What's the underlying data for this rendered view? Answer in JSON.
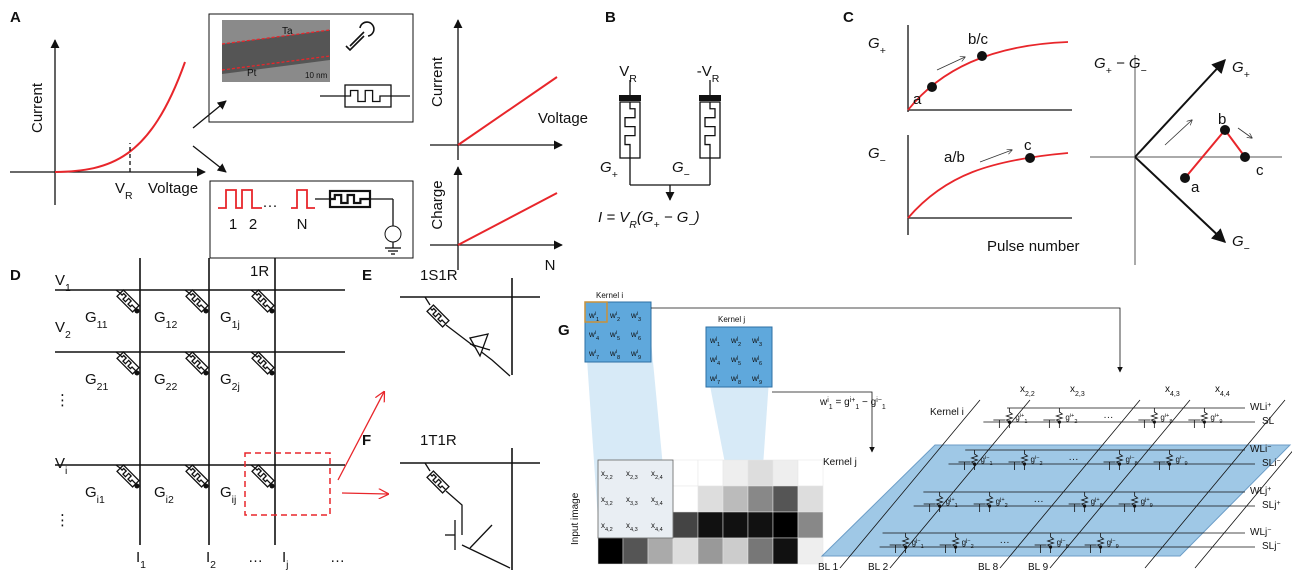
{
  "A": {
    "label": "A",
    "iv_ylabel": "Current",
    "vr": {
      "base": "V",
      "sub": "R"
    },
    "iv_xlabel": "Voltage",
    "tem_top": "Ta",
    "tem_bottom": "Pt",
    "tem_scale": "10 nm",
    "lin_ylabel": "Current",
    "lin_xlabel": "Voltage",
    "pulse_labels": [
      "1",
      "2",
      "···",
      "N"
    ],
    "charge_ylabel": "Charge",
    "charge_xlabel": "N"
  },
  "B": {
    "label": "B",
    "left_voltage": {
      "base": "V",
      "sub": "R"
    },
    "right_voltage": {
      "base": "-V",
      "sub": "R"
    },
    "g_plus": {
      "base": "G",
      "sub": "+"
    },
    "g_minus": {
      "base": "G",
      "sub": "−"
    },
    "equation": [
      {
        "base": "I = V"
      },
      {
        "sub": "R"
      },
      {
        "base": "(G"
      },
      {
        "sub": "+"
      },
      {
        "base": " − G"
      },
      {
        "sub": "−"
      },
      {
        "base": ")"
      }
    ]
  },
  "C": {
    "label": "C",
    "top_ylabel": {
      "base": "G",
      "sub": "+"
    },
    "top_points": [
      "a",
      "b/c"
    ],
    "bottom_ylabel": {
      "base": "G",
      "sub": "−"
    },
    "bottom_points": [
      "a/b",
      "c"
    ],
    "xlabel": "Pulse number",
    "vec_title": [
      {
        "base": "G"
      },
      {
        "sub": "+"
      },
      {
        "base": " − G"
      },
      {
        "sub": "−"
      }
    ],
    "vec_plus": {
      "base": "G",
      "sub": "+"
    },
    "vec_minus": {
      "base": "G",
      "sub": "−"
    },
    "vec_points": [
      "a",
      "b",
      "c"
    ]
  },
  "D": {
    "label": "D",
    "title": "1R",
    "rows": [
      {
        "base": "V",
        "sub": "1"
      },
      {
        "base": "V",
        "sub": "2"
      },
      "⋮",
      {
        "base": "V",
        "sub": "i"
      },
      "⋮"
    ],
    "conductances": [
      [
        {
          "base": "G",
          "sub": "11"
        },
        {
          "base": "G",
          "sub": "12"
        },
        {
          "base": "G",
          "sub": "1j"
        }
      ],
      [
        {
          "base": "G",
          "sub": "21"
        },
        {
          "base": "G",
          "sub": "22"
        },
        {
          "base": "G",
          "sub": "2j"
        }
      ],
      [
        {
          "base": "G",
          "sub": "i1"
        },
        {
          "base": "G",
          "sub": "i2"
        },
        {
          "base": "G",
          "sub": "ij"
        }
      ]
    ],
    "columns": [
      {
        "base": "I",
        "sub": "1"
      },
      {
        "base": "I",
        "sub": "2"
      },
      "…",
      {
        "base": "I",
        "sub": "j"
      },
      "…"
    ]
  },
  "E": {
    "label": "E",
    "title": "1S1R"
  },
  "F": {
    "label": "F",
    "title": "1T1R"
  },
  "G": {
    "label": "G",
    "kernel_i": {
      "title": "Kernel  i",
      "weights": [
        {
          "base": "w",
          "sup": "i",
          "sub": "1"
        },
        {
          "base": "w",
          "sup": "i",
          "sub": "2"
        },
        {
          "base": "w",
          "sup": "i",
          "sub": "3"
        },
        {
          "base": "w",
          "sup": "i",
          "sub": "4"
        },
        {
          "base": "w",
          "sup": "i",
          "sub": "5"
        },
        {
          "base": "w",
          "sup": "i",
          "sub": "6"
        },
        {
          "base": "w",
          "sup": "i",
          "sub": "7"
        },
        {
          "base": "w",
          "sup": "i",
          "sub": "8"
        },
        {
          "base": "w",
          "sup": "i",
          "sub": "9"
        }
      ]
    },
    "kernel_j": {
      "title": "Kernel  j",
      "weights": [
        {
          "base": "w",
          "sup": "j",
          "sub": "1"
        },
        {
          "base": "w",
          "sup": "j",
          "sub": "2"
        },
        {
          "base": "w",
          "sup": "j",
          "sub": "3"
        },
        {
          "base": "w",
          "sup": "j",
          "sub": "4"
        },
        {
          "base": "w",
          "sup": "j",
          "sub": "5"
        },
        {
          "base": "w",
          "sup": "j",
          "sub": "6"
        },
        {
          "base": "w",
          "sup": "j",
          "sub": "7"
        },
        {
          "base": "w",
          "sup": "j",
          "sub": "8"
        },
        {
          "base": "w",
          "sup": "j",
          "sub": "9"
        }
      ]
    },
    "input_label": "Input image",
    "window": [
      {
        "base": "x",
        "sub": "2,2"
      },
      {
        "base": "x",
        "sub": "2,3"
      },
      {
        "base": "x",
        "sub": "2,4"
      },
      {
        "base": "x",
        "sub": "3,2"
      },
      {
        "base": "x",
        "sub": "3,3"
      },
      {
        "base": "x",
        "sub": "3,4"
      },
      {
        "base": "x",
        "sub": "4,2"
      },
      {
        "base": "x",
        "sub": "4,3"
      },
      {
        "base": "x",
        "sub": "4,4"
      }
    ],
    "weight_eq": [
      {
        "base": "w"
      },
      {
        "sup": "i"
      },
      {
        "sub": "1"
      },
      {
        "base": " = g"
      },
      {
        "sup": "i+"
      },
      {
        "sub": "1"
      },
      {
        "base": " − g"
      },
      {
        "sup": "i−"
      },
      {
        "sub": "1"
      }
    ],
    "crossbar_kernel_i": "Kernel i",
    "crossbar_kernel_j": "Kernel j",
    "inputs": [
      {
        "base": "x",
        "sub": "2,2"
      },
      {
        "base": "x",
        "sub": "2,3"
      },
      {
        "base": "x",
        "sub": "4,3"
      },
      {
        "base": "x",
        "sub": "4,4"
      }
    ],
    "conductances": [
      [
        {
          "base": "g",
          "sup": "i+",
          "sub": "1"
        },
        {
          "base": "g",
          "sup": "i+",
          "sub": "2"
        },
        {
          "base": "g",
          "sup": "i+",
          "sub": "8"
        },
        {
          "base": "g",
          "sup": "i+",
          "sub": "9"
        }
      ],
      [
        {
          "base": "g",
          "sup": "i−",
          "sub": "1"
        },
        {
          "base": "g",
          "sup": "i−",
          "sub": "2"
        },
        {
          "base": "g",
          "sup": "i−",
          "sub": "8"
        },
        {
          "base": "g",
          "sup": "i−",
          "sub": "9"
        }
      ],
      [
        {
          "base": "g",
          "sup": "j+",
          "sub": "1"
        },
        {
          "base": "g",
          "sup": "j+",
          "sub": "2"
        },
        {
          "base": "g",
          "sup": "j+",
          "sub": "8"
        },
        {
          "base": "g",
          "sup": "j+",
          "sub": "9"
        }
      ],
      [
        {
          "base": "g",
          "sup": "j−",
          "sub": "1"
        },
        {
          "base": "g",
          "sup": "j−",
          "sub": "2"
        },
        {
          "base": "g",
          "sup": "j−",
          "sub": "8"
        },
        {
          "base": "g",
          "sup": "j−",
          "sub": "9"
        }
      ]
    ],
    "word_lines": [
      {
        "base": "WLi",
        "sup": "+"
      },
      {
        "base": "WLi",
        "sup": "−"
      },
      {
        "base": "WLj",
        "sup": "+"
      },
      {
        "base": "WLj",
        "sup": "−"
      }
    ],
    "source_lines": [
      "SL",
      {
        "base": "SLi",
        "sup": "−"
      },
      {
        "base": "SLj",
        "sup": "+"
      },
      {
        "base": "SLj",
        "sup": "−"
      }
    ],
    "ellipsis": "···",
    "bit_lines": [
      "BL 1",
      "BL 2",
      "BL 8",
      "BL 9"
    ]
  }
}
